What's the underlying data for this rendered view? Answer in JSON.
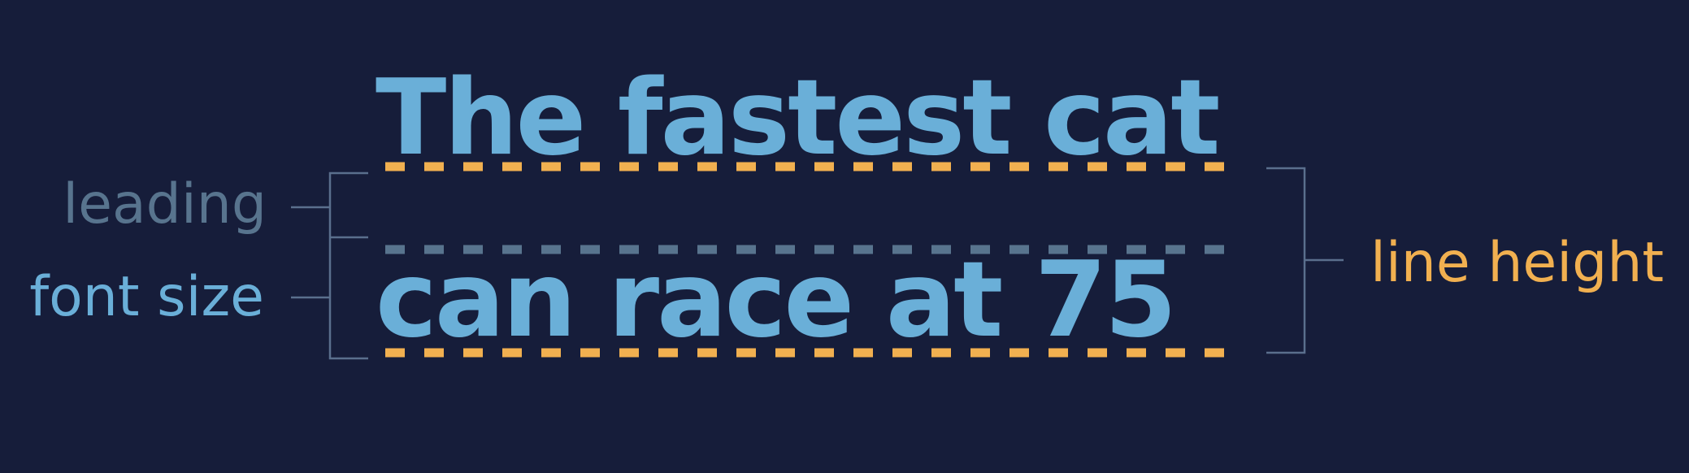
{
  "sample_text": {
    "line1": "The fastest cat",
    "line2": "can race at 75"
  },
  "labels": {
    "leading": "leading",
    "font_size": "font size",
    "line_height": "line height"
  },
  "colors": {
    "background": "#161d3a",
    "text_blue": "#6aafd8",
    "leading_gray": "#58748e",
    "accent_orange": "#f1b050",
    "bracket": "#5a6f8d"
  }
}
